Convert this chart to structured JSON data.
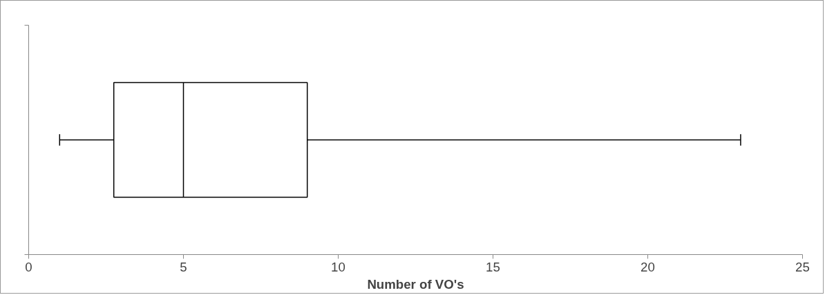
{
  "chart_data": {
    "type": "box",
    "orientation": "horizontal",
    "xlabel": "Number of VO's",
    "categories": [
      null
    ],
    "boxes": [
      {
        "low": 1,
        "q1": 2.75,
        "median": 5,
        "q3": 9,
        "high": 23
      }
    ],
    "xlim": [
      0,
      25
    ],
    "xticks": [
      0,
      5,
      10,
      15,
      20,
      25
    ],
    "tick_labels": "x",
    "grid": false
  }
}
